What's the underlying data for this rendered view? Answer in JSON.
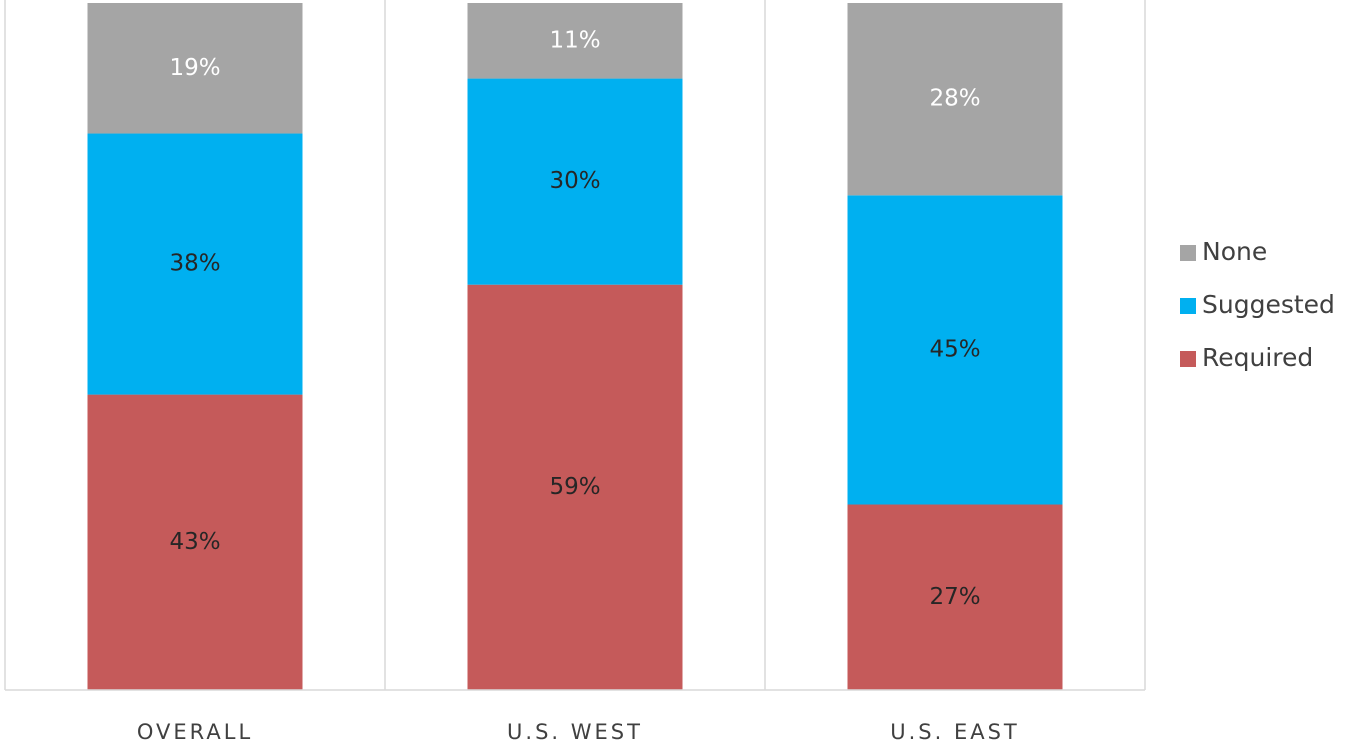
{
  "chart_data": {
    "type": "stacked_bar",
    "categories": [
      "OVERALL",
      "U.S. WEST",
      "U.S. EAST"
    ],
    "series": [
      {
        "name": "Required",
        "color": "#c55a5a",
        "label_color": "#262626",
        "values": [
          43,
          59,
          27
        ],
        "value_labels": [
          "43%",
          "59%",
          "27%"
        ]
      },
      {
        "name": "Suggested",
        "color": "#00b0f0",
        "label_color": "#262626",
        "values": [
          38,
          30,
          45
        ],
        "value_labels": [
          "38%",
          "30%",
          "45%"
        ]
      },
      {
        "name": "None",
        "color": "#a5a5a5",
        "label_color": "#ffffff",
        "values": [
          19,
          11,
          28
        ],
        "value_labels": [
          "19%",
          "11%",
          "28%"
        ]
      }
    ],
    "ylim": [
      0,
      100
    ],
    "legend": "right"
  }
}
